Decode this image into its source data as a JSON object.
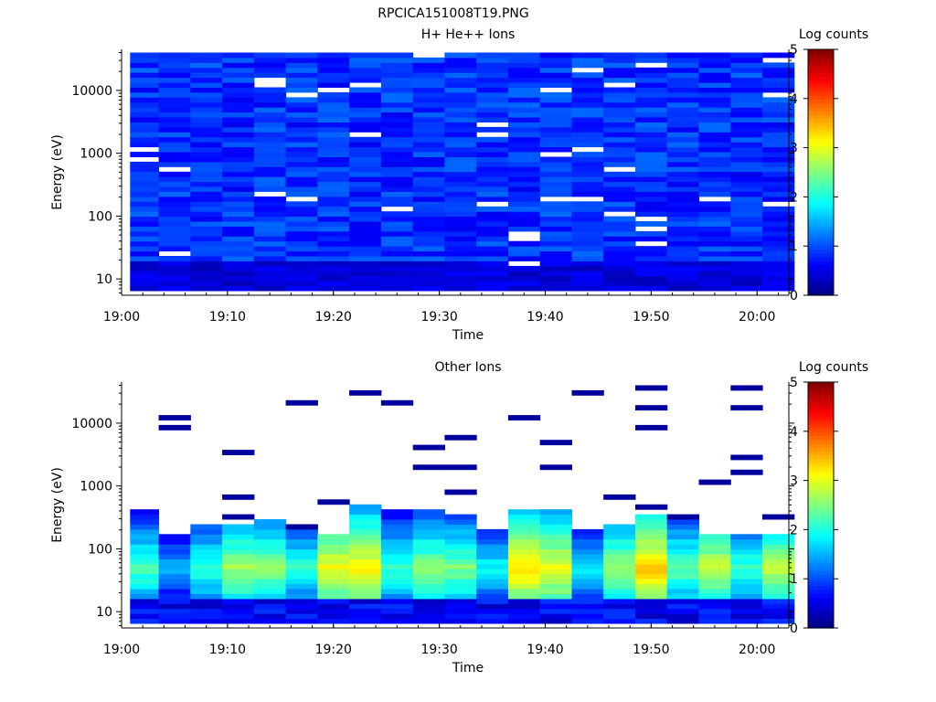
{
  "figure_title": "RPCICA151008T19.PNG",
  "chart_data": [
    {
      "type": "heatmap",
      "title": "H+ He++ Ions",
      "xlabel": "Time",
      "ylabel": "Energy (eV)",
      "y_scale": "log",
      "ylim": [
        5.5,
        45000
      ],
      "x_range": [
        "19:00",
        "20:03"
      ],
      "x_ticks": [
        "19:00",
        "19:10",
        "19:20",
        "19:30",
        "19:40",
        "19:50",
        "20:00"
      ],
      "y_ticks": [
        "10",
        "100",
        "1000",
        "10000"
      ],
      "time_bins": [
        "19:02",
        "19:05",
        "19:08",
        "19:11",
        "19:14",
        "19:17",
        "19:20",
        "19:23",
        "19:26",
        "19:29",
        "19:32",
        "19:35",
        "19:38",
        "19:41",
        "19:44",
        "19:47",
        "19:50",
        "19:53",
        "19:56",
        "19:59",
        "20:02"
      ],
      "pattern": "uniform",
      "base_level": 0.85,
      "low_energy_level": 0.45,
      "colorbar": {
        "label": "Log counts",
        "min": 0,
        "max": 5,
        "ticks": [
          "0",
          "1",
          "2",
          "3",
          "4",
          "5"
        ]
      }
    },
    {
      "type": "heatmap",
      "title": "Other Ions",
      "xlabel": "Time",
      "ylabel": "Energy (eV)",
      "y_scale": "log",
      "ylim": [
        5.5,
        45000
      ],
      "x_range": [
        "19:00",
        "20:03"
      ],
      "x_ticks": [
        "19:00",
        "19:10",
        "19:20",
        "19:30",
        "19:40",
        "19:50",
        "20:00"
      ],
      "y_ticks": [
        "10",
        "100",
        "1000",
        "10000"
      ],
      "time_bins": [
        "19:02",
        "19:05",
        "19:08",
        "19:11",
        "19:14",
        "19:17",
        "19:20",
        "19:23",
        "19:26",
        "19:29",
        "19:32",
        "19:35",
        "19:38",
        "19:41",
        "19:44",
        "19:47",
        "19:50",
        "19:53",
        "19:56",
        "19:59",
        "20:02"
      ],
      "pattern": "low_energy_band",
      "band_peak_energy": 50,
      "band_peak_levels": [
        2.3,
        1.5,
        2.2,
        2.7,
        2.6,
        2.1,
        3.1,
        3.2,
        2.2,
        2.6,
        2.5,
        1.9,
        3.3,
        3.1,
        1.8,
        2.7,
        3.4,
        2.4,
        2.9,
        2.2,
        2.8
      ],
      "band_top_energy": [
        400,
        180,
        230,
        260,
        280,
        200,
        180,
        480,
        400,
        400,
        330,
        200,
        430,
        400,
        220,
        260,
        360,
        300,
        160,
        170,
        160
      ],
      "sparse_high_energy_lines": true,
      "colorbar": {
        "label": "Log counts",
        "min": 0,
        "max": 5,
        "ticks": [
          "0",
          "1",
          "2",
          "3",
          "4",
          "5"
        ]
      }
    }
  ]
}
